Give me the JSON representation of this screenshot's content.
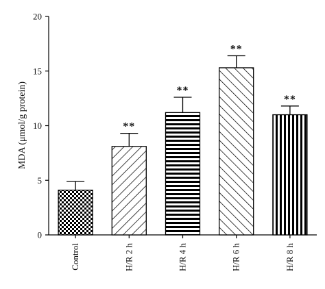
{
  "chart_data": {
    "type": "bar",
    "title": "",
    "xlabel": "",
    "ylabel": "MDA (μmol/g protein)",
    "ylim": [
      0,
      20
    ],
    "yticks": [
      0,
      5,
      10,
      15,
      20
    ],
    "grid": false,
    "categories": [
      "Control",
      "H/R 2 h",
      "H/R 4 h",
      "H/R 6 h",
      "H/R 8 h"
    ],
    "values": [
      4.1,
      8.1,
      11.2,
      15.3,
      11.0
    ],
    "errors": [
      0.8,
      1.2,
      1.4,
      1.1,
      0.8
    ],
    "annotations": [
      "",
      "**",
      "**",
      "**",
      "**"
    ],
    "patterns": [
      "checkerboard",
      "forward-diagonal",
      "horizontal",
      "backward-diagonal",
      "vertical"
    ],
    "bar_fill_color": "#ffffff",
    "bar_stroke_color": "#000000"
  }
}
